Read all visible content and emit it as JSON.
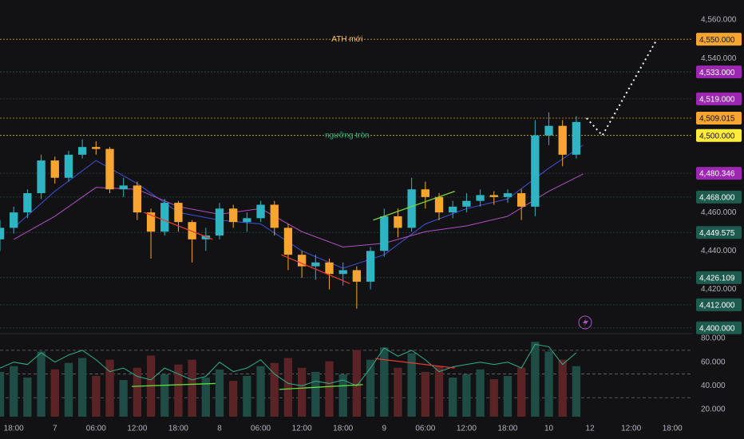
{
  "chart_data": {
    "type": "candlestick",
    "x": [
      -2,
      0,
      2,
      4,
      6,
      8,
      10,
      12,
      14,
      16,
      18,
      20,
      22,
      24,
      26,
      28,
      30,
      32,
      34,
      36,
      38,
      40,
      42,
      44,
      46,
      48,
      50,
      52,
      54,
      56,
      58,
      60,
      62,
      64,
      66,
      68,
      70,
      72,
      74,
      76,
      78,
      80,
      82
    ],
    "open": [
      4446,
      4452,
      4460,
      4470,
      4487,
      4478,
      4490,
      4494,
      4493,
      4472,
      4474,
      4460,
      4450,
      4465,
      4455,
      4446,
      4448,
      4462,
      4455,
      4457,
      4464,
      4452,
      4438,
      4432,
      4434,
      4428,
      4430,
      4424,
      4440,
      4458,
      4452,
      4472,
      4468,
      4460,
      4463,
      4466,
      4469,
      4468,
      4470,
      4463,
      4500,
      4505,
      4490
    ],
    "high": [
      4456,
      4463,
      4472,
      4490,
      4489,
      4492,
      4498,
      4497,
      4494,
      4478,
      4476,
      4462,
      4467,
      4466,
      4456,
      4452,
      4465,
      4464,
      4460,
      4466,
      4466,
      4454,
      4440,
      4438,
      4436,
      4434,
      4432,
      4442,
      4462,
      4462,
      4478,
      4476,
      4470,
      4466,
      4470,
      4472,
      4471,
      4472,
      4472,
      4508,
      4512,
      4508,
      4510
    ],
    "low": [
      4440,
      4449,
      4457,
      4467,
      4475,
      4476,
      4488,
      4490,
      4470,
      4468,
      4456,
      4436,
      4448,
      4450,
      4434,
      4440,
      4446,
      4452,
      4450,
      4455,
      4448,
      4430,
      4426,
      4425,
      4420,
      4422,
      4410,
      4420,
      4437,
      4447,
      4450,
      4462,
      4456,
      4457,
      4460,
      4463,
      4464,
      4465,
      4456,
      4458,
      4495,
      4484,
      4488
    ],
    "close": [
      4452,
      4460,
      4470,
      4487,
      4478,
      4490,
      4494,
      4493,
      4472,
      4474,
      4460,
      4450,
      4465,
      4455,
      4446,
      4448,
      4462,
      4455,
      4457,
      4464,
      4452,
      4438,
      4432,
      4434,
      4428,
      4430,
      4424,
      4440,
      4458,
      4452,
      4472,
      4468,
      4460,
      4463,
      4466,
      4469,
      4468,
      4470,
      4463,
      4500,
      4505,
      4490,
      4507
    ],
    "up_color": "#2fb4c4",
    "down_color": "#f7a531",
    "xlim": [
      -2,
      99
    ],
    "ylim": [
      4397,
      4570.4
    ],
    "xticks": [
      {
        "value": 0,
        "label": "18:00"
      },
      {
        "value": 6,
        "label": "7"
      },
      {
        "value": 12,
        "label": "06:00"
      },
      {
        "value": 18,
        "label": "12:00"
      },
      {
        "value": 24,
        "label": "18:00"
      },
      {
        "value": 30,
        "label": "8"
      },
      {
        "value": 36,
        "label": "06:00"
      },
      {
        "value": 42,
        "label": "12:00"
      },
      {
        "value": 48,
        "label": "18:00"
      },
      {
        "value": 54,
        "label": "9"
      },
      {
        "value": 60,
        "label": "06:00"
      },
      {
        "value": 66,
        "label": "12:00"
      },
      {
        "value": 72,
        "label": "18:00"
      },
      {
        "value": 78,
        "label": "10"
      },
      {
        "value": 84,
        "label": "12"
      },
      {
        "value": 90,
        "label": "12:00"
      },
      {
        "value": 96,
        "label": "18:00"
      }
    ],
    "yticks": [
      {
        "value": 4560,
        "label": "4,560.000"
      },
      {
        "value": 4540,
        "label": "4,540.000"
      },
      {
        "value": 4460,
        "label": "4,460.000"
      },
      {
        "value": 4440,
        "label": "4,440.000"
      },
      {
        "value": 4420,
        "label": "4,420.000"
      }
    ],
    "levels": [
      {
        "value": 4550,
        "label": "4,550.000",
        "color": "#f7a531",
        "line_color": "#c8952e"
      },
      {
        "value": 4533,
        "label": "4,533.000",
        "color": "#9c27b0",
        "line_color": "#3b5e52"
      },
      {
        "value": 4519,
        "label": "4,519.000",
        "color": "#9c27b0",
        "line_color": "#3a3a40"
      },
      {
        "value": 4509.015,
        "label": "4,509.015",
        "color": "#f7a531",
        "line_color": "#c8952e"
      },
      {
        "value": 4500,
        "label": "4,500.000",
        "color": "#ffeb3b",
        "line_color": "#c9b92d"
      },
      {
        "value": 4480.346,
        "label": "4,480.346",
        "color": "#9c27b0",
        "line_color": "#3a3a40"
      },
      {
        "value": 4468,
        "label": "4,468.000",
        "color": "#1e5b4f",
        "line_color": "#2c4a42"
      },
      {
        "value": 4449.575,
        "label": "4,449.575",
        "color": "#1e5b4f",
        "line_color": "#2c4a42"
      },
      {
        "value": 4426.109,
        "label": "4,426.109",
        "color": "#1e5b4f",
        "line_color": "#2c4a42"
      },
      {
        "value": 4412,
        "label": "4,412.000",
        "color": "#1e5b4f",
        "line_color": "#2c4a42"
      },
      {
        "value": 4400,
        "label": "4,400.000",
        "color": "#1e5b4f",
        "line_color": "#2c4a42"
      }
    ],
    "annotations": [
      {
        "text": "ATH mới",
        "x": 48.6,
        "value": 4550,
        "color": "#f0c36a"
      },
      {
        "text": "ngưỡng tròn",
        "x": 48.6,
        "value": 4500,
        "color": "#2fb08a"
      }
    ],
    "moving_averages": [
      {
        "color": "#3f51d9",
        "x": [
          0,
          6,
          12,
          18,
          24,
          30,
          36,
          42,
          48,
          54,
          60,
          66,
          72,
          78,
          83
        ],
        "values": [
          4452,
          4471,
          4487,
          4475,
          4460,
          4456,
          4454,
          4440,
          4431,
          4438,
          4454,
          4462,
          4467,
          4483,
          4495
        ]
      },
      {
        "color": "#b04fc4",
        "x": [
          0,
          6,
          12,
          18,
          24,
          30,
          36,
          42,
          48,
          54,
          60,
          66,
          72,
          78,
          83
        ],
        "values": [
          4446,
          4458,
          4473,
          4472,
          4463,
          4459,
          4462,
          4450,
          4442,
          4444,
          4450,
          4453,
          4458,
          4471,
          4480
        ]
      }
    ],
    "projection": {
      "color": "#ffffff",
      "x": [
        83.5,
        85.8,
        93.6
      ],
      "values": [
        4509,
        4500,
        4549
      ]
    },
    "trendlines": [
      {
        "color": "#e53935",
        "x": [
          19,
          29
        ],
        "values": [
          4460,
          4446
        ]
      },
      {
        "color": "#e53935",
        "x": [
          39,
          49
        ],
        "values": [
          4438,
          4423
        ]
      },
      {
        "color": "#7bd43a",
        "x": [
          52.4,
          64.3
        ],
        "values": [
          4456,
          4471
        ]
      }
    ],
    "oscillator": {
      "ylim": [
        14,
        82.7
      ],
      "yticks": [
        {
          "value": 80,
          "label": "80.000"
        },
        {
          "value": 60,
          "label": "60.000"
        },
        {
          "value": 40,
          "label": "40.000"
        },
        {
          "value": 20,
          "label": "20.000"
        }
      ],
      "bands": [
        70,
        50,
        30
      ],
      "line_color": "#2fb08a",
      "values": [
        55,
        60,
        58,
        68,
        60,
        66,
        70,
        62,
        52,
        55,
        48,
        45,
        55,
        50,
        45,
        48,
        60,
        52,
        55,
        62,
        50,
        42,
        40,
        44,
        42,
        45,
        40,
        55,
        72,
        65,
        70,
        62,
        52,
        56,
        58,
        60,
        58,
        60,
        55,
        75,
        73,
        58,
        68
      ],
      "volume_lim": [
        0,
        100
      ],
      "volume": [
        55,
        62,
        48,
        80,
        58,
        66,
        72,
        50,
        70,
        45,
        60,
        75,
        52,
        64,
        70,
        48,
        58,
        44,
        50,
        62,
        66,
        72,
        60,
        55,
        68,
        52,
        82,
        70,
        85,
        60,
        78,
        55,
        62,
        48,
        52,
        58,
        46,
        50,
        60,
        92,
        80,
        70,
        62
      ],
      "volume_up_color": "#1f4d46",
      "volume_down_color": "#5a2427",
      "trendlines": [
        {
          "color": "#5ee33a",
          "x": [
            17.2,
            29.4
          ],
          "values": [
            39.5,
            42
          ]
        },
        {
          "color": "#5ee33a",
          "x": [
            38.7,
            50.9
          ],
          "values": [
            37,
            41
          ]
        },
        {
          "color": "#e53935",
          "x": [
            52.7,
            64.3
          ],
          "values": [
            63,
            55
          ]
        }
      ]
    }
  }
}
